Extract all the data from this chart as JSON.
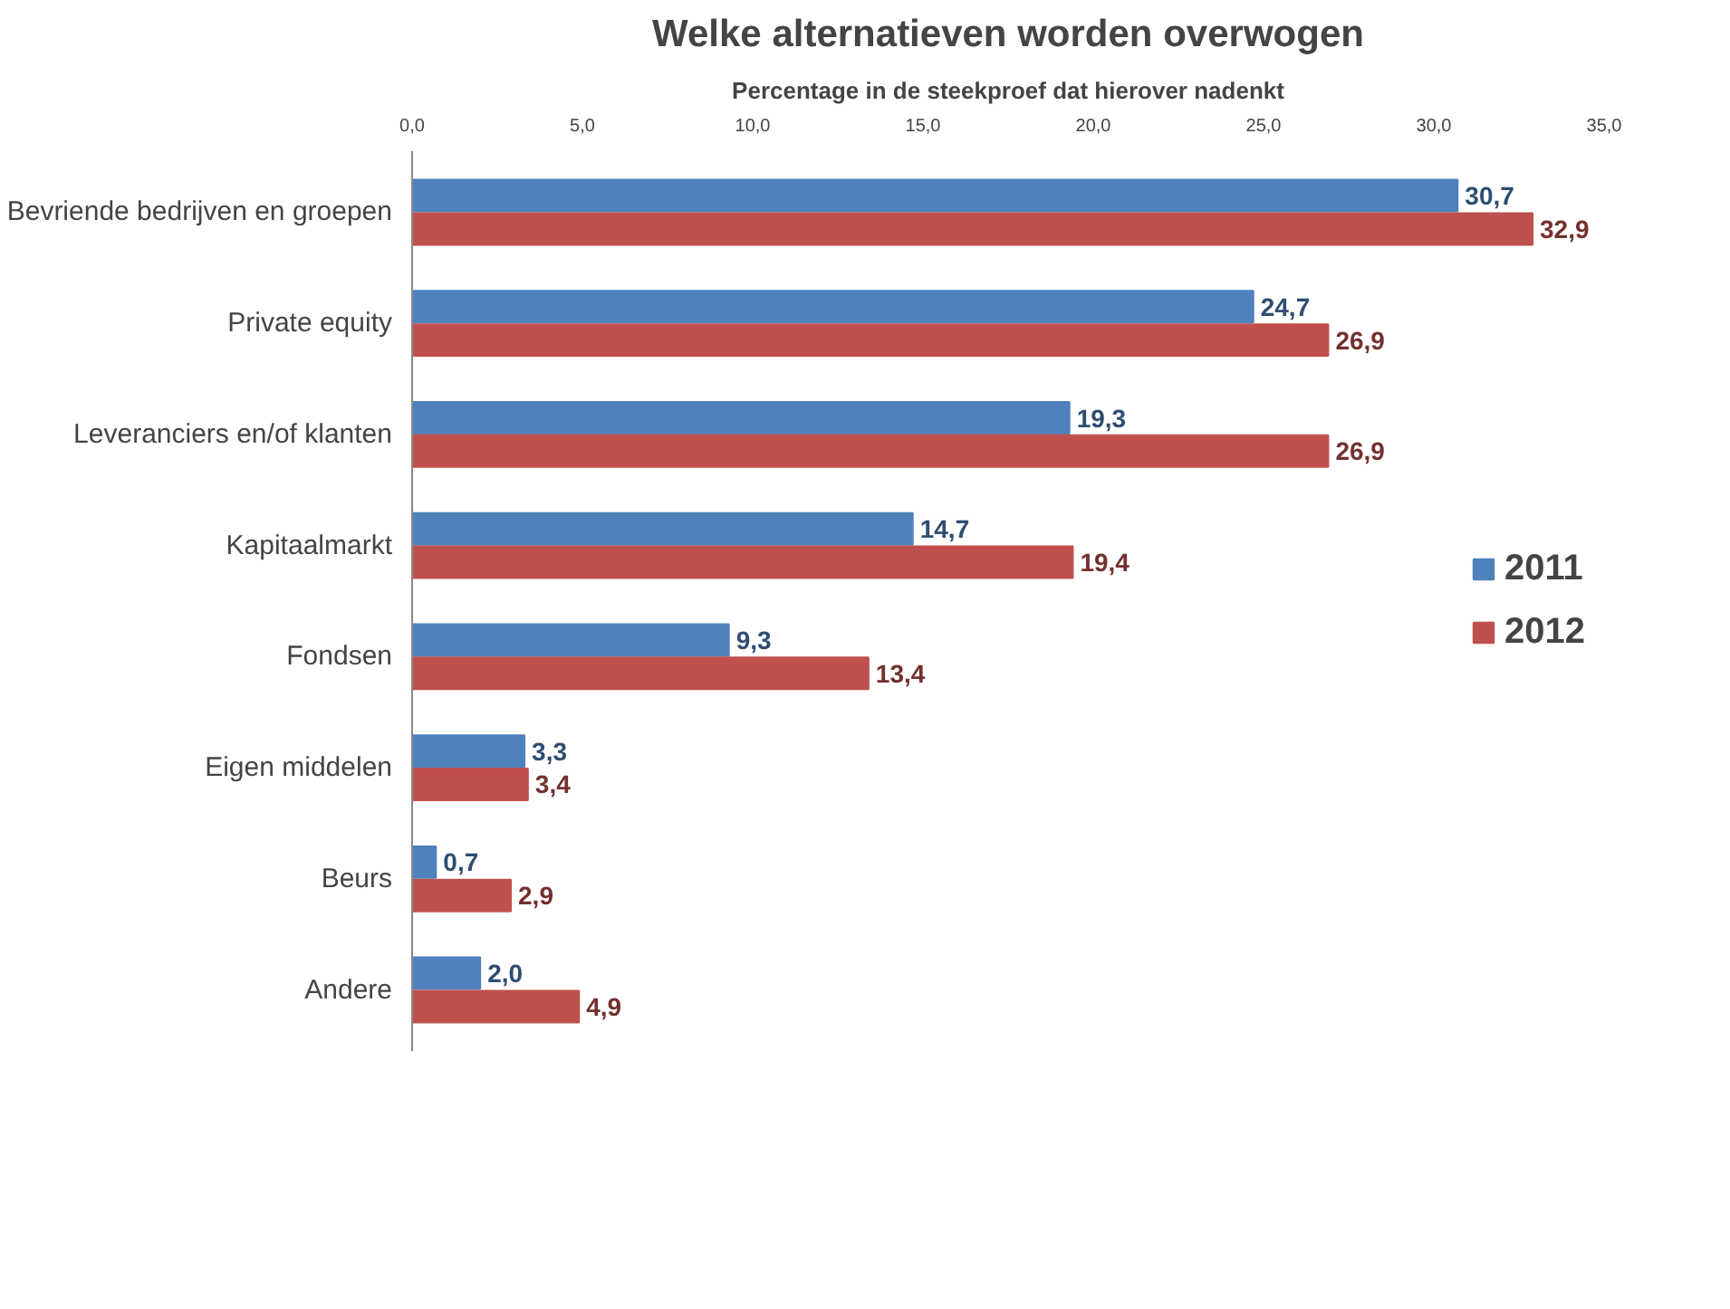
{
  "chart_data": {
    "type": "bar",
    "orientation": "horizontal",
    "title": "Welke alternatieven worden overwogen",
    "subtitle": "Percentage in de steekproef dat hierover nadenkt",
    "categories": [
      "Bevriende bedrijven en groepen",
      "Private equity",
      "Leveranciers en/of klanten",
      "Kapitaalmarkt",
      "Fondsen",
      "Eigen middelen",
      "Beurs",
      "Andere"
    ],
    "series": [
      {
        "name": "2011",
        "color": "#4f81bd",
        "values": [
          30.7,
          24.7,
          19.3,
          14.7,
          9.3,
          3.3,
          0.7,
          2.0
        ],
        "value_labels": [
          "30,7",
          "24,7",
          "19,3",
          "14,7",
          "9,3",
          "3,3",
          "0,7",
          "2,0"
        ]
      },
      {
        "name": "2012",
        "color": "#c0504d",
        "values": [
          32.9,
          26.9,
          26.9,
          19.4,
          13.4,
          3.4,
          2.9,
          4.9
        ],
        "value_labels": [
          "32,9",
          "26,9",
          "26,9",
          "19,4",
          "13,4",
          "3,4",
          "2,9",
          "4,9"
        ]
      }
    ],
    "xlim": [
      0,
      35
    ],
    "xticks": [
      {
        "value": 0,
        "label": "0,0"
      },
      {
        "value": 5,
        "label": "5,0"
      },
      {
        "value": 10,
        "label": "10,0"
      },
      {
        "value": 15,
        "label": "15,0"
      },
      {
        "value": 20,
        "label": "20,0"
      },
      {
        "value": 25,
        "label": "25,0"
      },
      {
        "value": 30,
        "label": "30,0"
      },
      {
        "value": 35,
        "label": "35,0"
      }
    ],
    "grid": false,
    "legend": "right"
  }
}
